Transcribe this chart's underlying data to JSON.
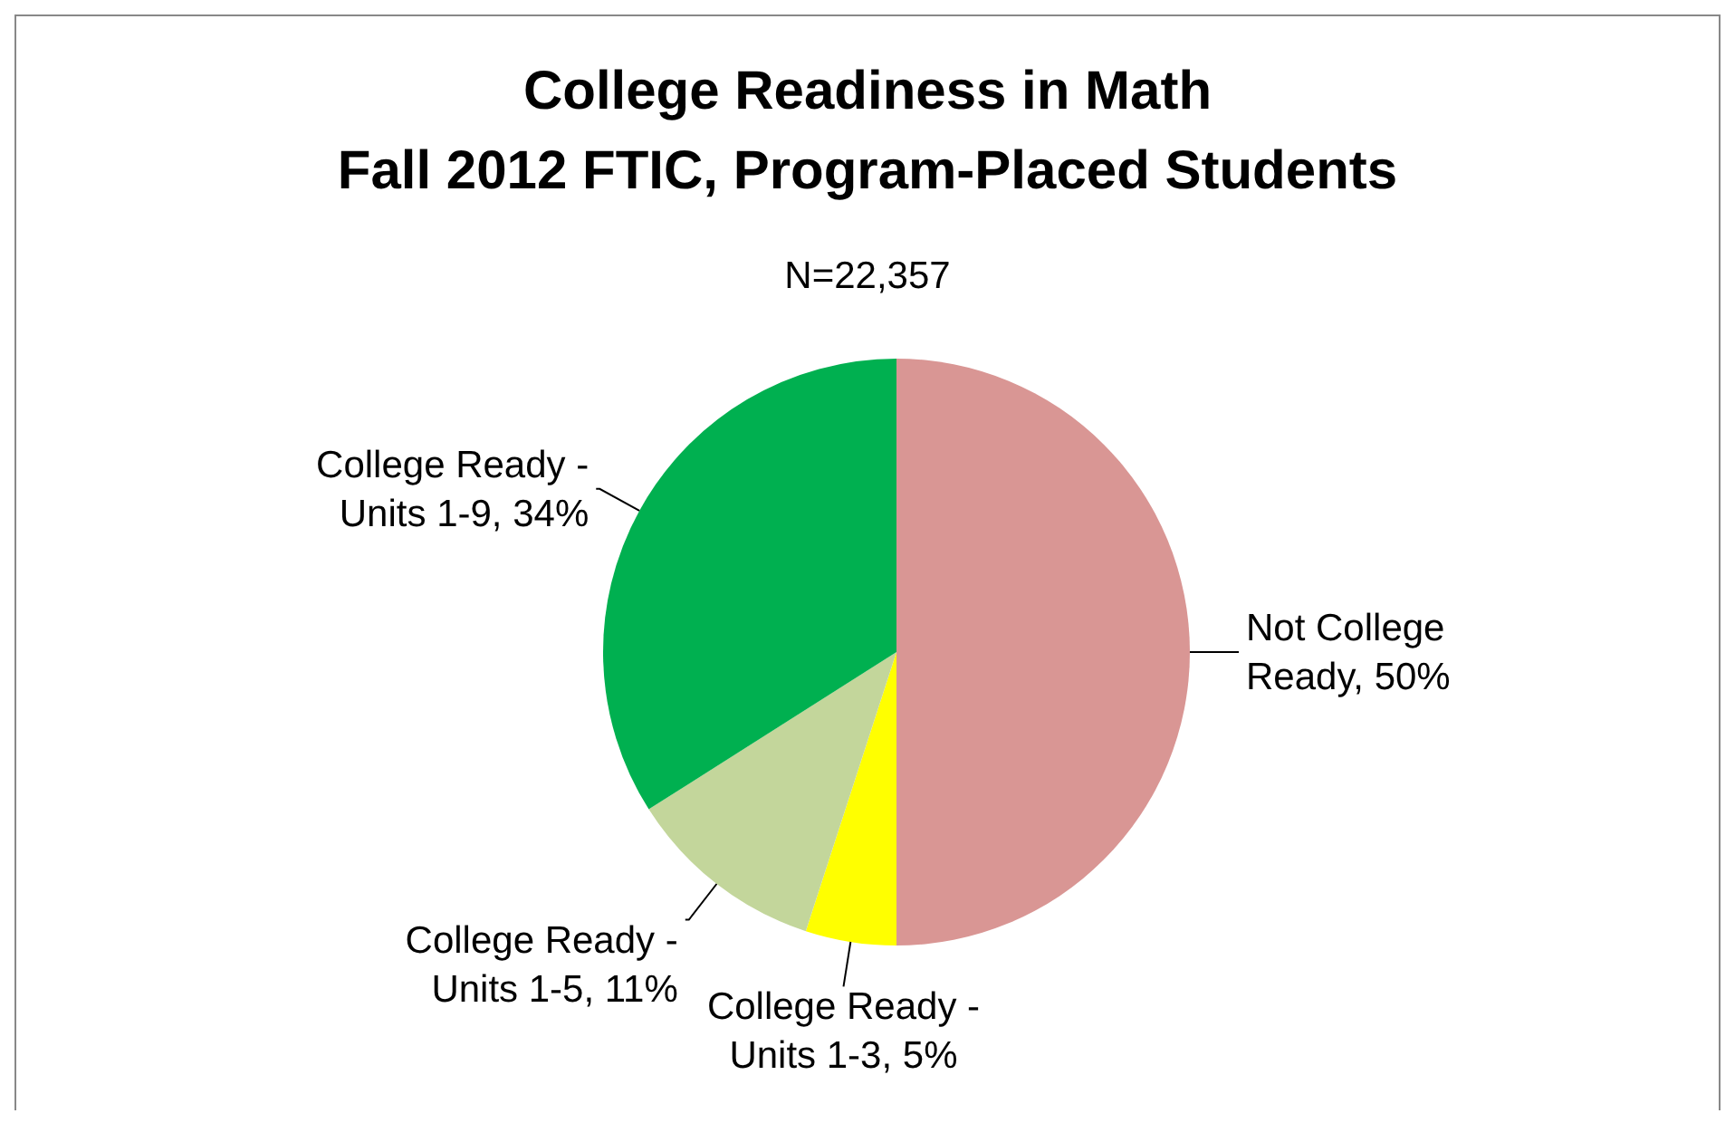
{
  "chart_data": {
    "type": "pie",
    "title": "College Readiness in Math\nFall 2012 FTIC, Program-Placed Students",
    "subtitle": "N=22,357",
    "categories": [
      "Not College Ready",
      "College Ready - Units 1-3",
      "College Ready - Units 1-5",
      "College Ready - Units 1-9"
    ],
    "values": [
      50,
      5,
      11,
      34
    ],
    "value_labels": [
      "50%",
      "5%",
      "11%",
      "34%"
    ],
    "colors": [
      "#d99694",
      "#ffff00",
      "#c3d69b",
      "#00b050"
    ],
    "legend": false
  }
}
